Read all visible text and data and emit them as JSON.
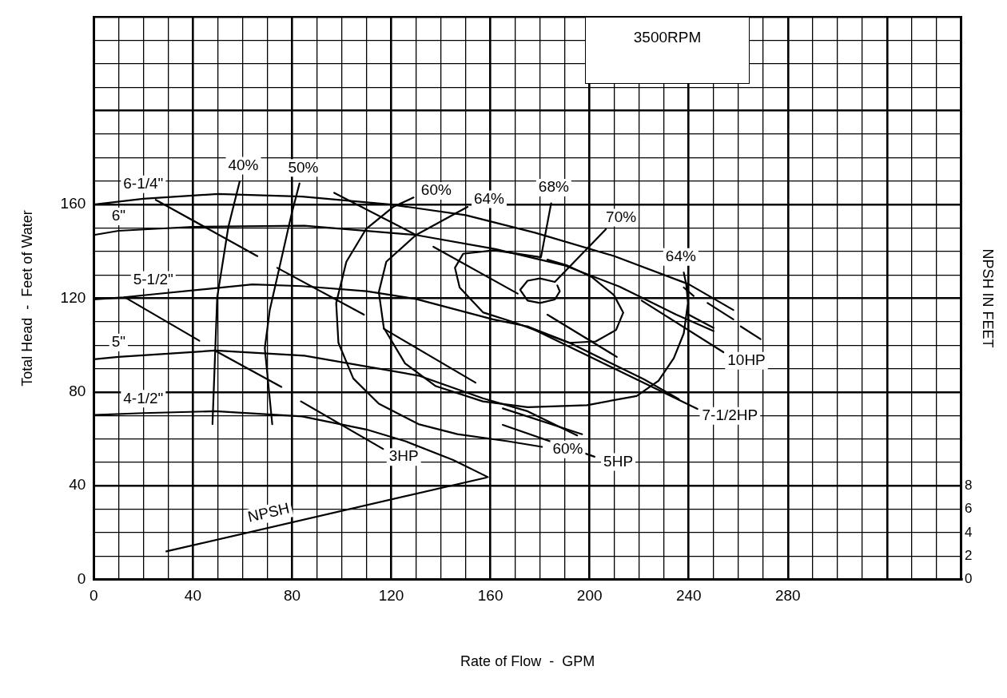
{
  "chart_data": {
    "type": "line",
    "xlabel": "Rate of Flow  -  GPM",
    "ylabel": "Total Head  -  Feet of Water",
    "y2label": "NPSH IN FEET",
    "xlim": [
      0,
      350
    ],
    "xticks": [
      0,
      {
        "value": 10,
        "label": null
      },
      {
        "value": 20,
        "label": null
      },
      {
        "value": 30,
        "label": null
      },
      40,
      {
        "value": 50,
        "label": null
      },
      {
        "value": 60,
        "label": null
      },
      {
        "value": 70,
        "label": null
      },
      80,
      {
        "value": 90,
        "label": null
      },
      {
        "value": 100,
        "label": null
      },
      {
        "value": 110,
        "label": null
      },
      120,
      {
        "value": 130,
        "label": null
      },
      {
        "value": 140,
        "label": null
      },
      {
        "value": 150,
        "label": null
      },
      160,
      {
        "value": 170,
        "label": null
      },
      {
        "value": 180,
        "label": null
      },
      {
        "value": 190,
        "label": null
      },
      200,
      {
        "value": 210,
        "label": null
      },
      {
        "value": 220,
        "label": null
      },
      {
        "value": 230,
        "label": null
      },
      240,
      {
        "value": 250,
        "label": null
      },
      {
        "value": 260,
        "label": null
      },
      {
        "value": 270,
        "label": null
      },
      280,
      {
        "value": 290,
        "label": null
      },
      {
        "value": 300,
        "label": null
      },
      {
        "value": 310,
        "label": null
      },
      {
        "value": 320,
        "label": null
      },
      {
        "value": 330,
        "label": null
      },
      {
        "value": 340,
        "label": null
      },
      {
        "value": 350,
        "label": null
      }
    ],
    "ylim": [
      0,
      240
    ],
    "yticks": [
      0,
      {
        "value": 10,
        "label": null
      },
      {
        "value": 20,
        "label": null
      },
      {
        "value": 30,
        "label": null
      },
      40,
      {
        "value": 50,
        "label": null
      },
      {
        "value": 60,
        "label": null
      },
      {
        "value": 70,
        "label": null
      },
      80,
      {
        "value": 90,
        "label": null
      },
      {
        "value": 100,
        "label": null
      },
      {
        "value": 110,
        "label": null
      },
      120,
      {
        "value": 130,
        "label": null
      },
      {
        "value": 140,
        "label": null
      },
      {
        "value": 150,
        "label": null
      },
      160,
      {
        "value": 170,
        "label": null
      },
      {
        "value": 180,
        "label": null
      },
      {
        "value": 190,
        "label": null
      },
      {
        "value": 200,
        "label": null
      },
      {
        "value": 210,
        "label": null
      },
      {
        "value": 220,
        "label": null
      },
      {
        "value": 230,
        "label": null
      },
      {
        "value": 240,
        "label": null
      }
    ],
    "y2lim": [
      0,
      48
    ],
    "y2ticks": [
      0,
      2,
      4,
      6,
      8
    ],
    "grid": true,
    "marker": "none",
    "line_style": "solid",
    "series": [
      {
        "color": "#000000",
        "x": [
          0,
          20,
          50,
          84,
          120,
          150,
          178,
          210,
          240,
          258
        ],
        "values": [
          160,
          162.5,
          164.5,
          163.4,
          160,
          155.5,
          148,
          138,
          126,
          115
        ]
      },
      {
        "color": "#000000",
        "x": [
          0,
          10,
          40,
          85,
          130,
          162,
          190,
          212,
          235,
          250
        ],
        "values": [
          147,
          148.8,
          150.5,
          151,
          147,
          141,
          134,
          125,
          113,
          106
        ]
      },
      {
        "color": "#000000",
        "x": [
          0,
          12,
          24,
          64,
          84,
          110,
          130,
          161,
          175,
          192,
          222,
          236
        ],
        "values": [
          119.5,
          120.4,
          121.7,
          125.9,
          125.2,
          123,
          119.7,
          111,
          108,
          101,
          85.4,
          77
        ]
      },
      {
        "color": "#000000",
        "x": [
          0,
          10,
          49,
          85,
          131,
          157,
          175,
          195
        ],
        "values": [
          94,
          95,
          97.7,
          95.5,
          87,
          77.3,
          71.8,
          61.5
        ]
      },
      {
        "color": "#000000",
        "x": [
          0,
          20,
          49,
          84,
          110,
          126,
          145,
          159
        ],
        "values": [
          70.2,
          71,
          71.8,
          69.6,
          64,
          58.9,
          51,
          43.7
        ]
      },
      {
        "name": "NPSH",
        "color": "#000000",
        "axis": "y2",
        "x": [
          29.3,
          158.4
        ],
        "values": [
          2.4,
          8.7
        ]
      },
      {
        "color": "#000000",
        "x": [
          58.9,
          54.3,
          49.8,
          47.9
        ],
        "values": [
          170,
          150.5,
          120.4,
          66.3
        ]
      },
      {
        "color": "#000000",
        "x": [
          83,
          79.8,
          71,
          69,
          72
        ],
        "values": [
          169,
          156,
          115,
          98.7,
          66.3
        ]
      },
      {
        "color": "#000000",
        "x": [
          129,
          120.8,
          109.8,
          101.9,
          97.8,
          98.7,
          104.7,
          115,
          131,
          146.7,
          167,
          180.8
        ],
        "values": [
          163,
          159,
          149.5,
          135.6,
          118,
          101,
          85.8,
          75,
          66.3,
          62,
          59,
          56.6
        ]
      },
      {
        "color": "#000000",
        "x": [
          150.8,
          130,
          118,
          115,
          117,
          125.6,
          138,
          157,
          175,
          199,
          219,
          227.8,
          234,
          238,
          239.7,
          239,
          238
        ],
        "values": [
          159,
          147,
          135.6,
          122.6,
          107.4,
          92.2,
          82.5,
          76,
          73.5,
          74.4,
          78.3,
          84.8,
          94.5,
          105,
          118,
          126,
          131
        ]
      },
      {
        "color": "#000000",
        "x": [
          184.5,
          180.4,
          161.5,
          149,
          145.7,
          147.6,
          157,
          169.7,
          191.8,
          202.5,
          210.7,
          213.6,
          209.8,
          201,
          191,
          183
        ],
        "values": [
          160.5,
          137.5,
          140.5,
          139,
          133,
          124.6,
          114,
          109.7,
          101,
          101.6,
          106.5,
          113.9,
          121.4,
          129,
          134,
          136.5
        ]
      },
      {
        "color": "#000000",
        "x": [
          206.6,
          186,
          180,
          175,
          172,
          175,
          180,
          186,
          188,
          187
        ],
        "values": [
          149.5,
          127,
          128.5,
          127.5,
          123.6,
          119,
          118,
          119.5,
          123,
          125.5
        ]
      },
      {
        "color": "#000000",
        "x": [
          25,
          66
        ],
        "values": [
          162,
          138
        ]
      },
      {
        "color": "#000000",
        "x": [
          12.6,
          42.6
        ],
        "values": [
          120.4,
          101.9
        ]
      },
      {
        "color": "#000000",
        "x": [
          48.9,
          75.7
        ],
        "values": [
          97.7,
          82.2
        ]
      },
      {
        "color": "#000000",
        "x": [
          83.6,
          116.7
        ],
        "values": [
          76,
          55.7
        ]
      },
      {
        "color": "#000000",
        "x": [
          97,
          130
        ],
        "values": [
          165,
          147
        ]
      },
      {
        "color": "#000000",
        "x": [
          74,
          109
        ],
        "values": [
          133,
          113
        ]
      },
      {
        "color": "#000000",
        "x": [
          117,
          154
        ],
        "values": [
          107,
          84
        ]
      },
      {
        "color": "#000000",
        "x": [
          165,
          197
        ],
        "values": [
          73,
          62
        ]
      },
      {
        "color": "#000000",
        "x": [
          165,
          202
        ],
        "values": [
          66,
          52.4
        ]
      },
      {
        "color": "#000000",
        "x": [
          137,
          171
        ],
        "values": [
          142,
          122
        ]
      },
      {
        "color": "#000000",
        "x": [
          183,
          211
        ],
        "values": [
          113,
          95
        ]
      },
      {
        "color": "#000000",
        "x": [
          175,
          243.5
        ],
        "values": [
          108,
          72.8
        ]
      },
      {
        "color": "#000000",
        "x": [
          240,
          250
        ],
        "values": [
          113,
          107.4
        ]
      },
      {
        "color": "#000000",
        "x": [
          238,
          242
        ],
        "values": [
          124.6,
          121
        ]
      },
      {
        "color": "#000000",
        "x": [
          247.6,
          258
        ],
        "values": [
          118,
          111
        ]
      },
      {
        "color": "#000000",
        "x": [
          261,
          269
        ],
        "values": [
          108,
          102.6
        ]
      },
      {
        "color": "#000000",
        "x": [
          221,
          254
        ],
        "values": [
          119,
          97
        ]
      }
    ],
    "annotations": [
      "3500RPM",
      {
        "text": "6-1/4\"",
        "x": 20,
        "y": 162.5
      },
      {
        "text": "6\"",
        "x": 10,
        "y": 148.8
      },
      {
        "text": "5-1/2\"",
        "x": 24,
        "y": 121.7
      },
      {
        "text": "5\"",
        "x": 10,
        "y": 95
      },
      {
        "text": "4-1/2\"",
        "x": 20,
        "y": 71
      },
      {
        "text": "40%",
        "x": 58.9,
        "y": 170
      },
      {
        "text": "50%",
        "x": 83,
        "y": 169
      },
      {
        "text": "60%",
        "x": 129,
        "y": 163
      },
      {
        "text": "64%",
        "x": 150.8,
        "y": 159
      },
      {
        "text": "68%",
        "x": 184.5,
        "y": 160.5
      },
      {
        "text": "70%",
        "x": 206.6,
        "y": 149.5
      },
      {
        "text": "64%",
        "x": 238,
        "y": 131
      },
      {
        "text": "60%",
        "x": 180.8,
        "y": 56.6
      },
      {
        "text": "3HP",
        "x": 116.7,
        "y": 55.7
      },
      {
        "text": "5HP",
        "x": 202,
        "y": 52.4
      },
      {
        "text": "7-1/2HP",
        "x": 243.5,
        "y": 72.8
      },
      {
        "text": "10HP",
        "x": 254,
        "y": 97
      }
    ]
  }
}
